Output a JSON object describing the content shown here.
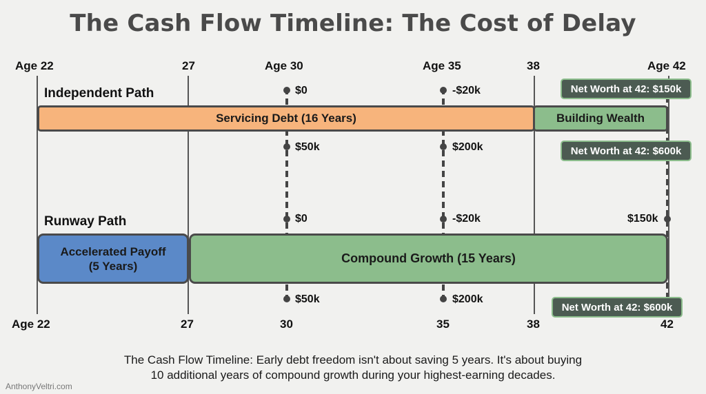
{
  "title": "The Cash Flow Timeline: The Cost of Delay",
  "top_ticks": [
    "Age 22",
    "27",
    "Age 30",
    "Age 35",
    "38",
    "Age 42"
  ],
  "bottom_ticks": [
    "Age 22",
    "27",
    "30",
    "35",
    "38",
    "42"
  ],
  "independent": {
    "label": "Independent Path",
    "debt_bar": "Servicing Debt (16 Years)",
    "wealth_bar": "Building Wealth",
    "marker30_top": "$0",
    "marker35_top": "-$20k",
    "marker30_bottom": "$50k",
    "marker35_bottom": "$200k",
    "badge_top": "Net Worth at 42: $150k",
    "badge_mid": "Net Worth at 42: $600k"
  },
  "runway": {
    "label": "Runway Path",
    "payoff_bar_line1": "Accelerated Payoff",
    "payoff_bar_line2": "(5 Years)",
    "growth_bar": "Compound Growth (15 Years)",
    "marker30_top": "$0",
    "marker35_top": "-$20k",
    "marker42_top": "$150k",
    "marker30_bottom": "$50k",
    "marker35_bottom": "$200k",
    "badge_bottom": "Net Worth at 42: $600k"
  },
  "caption_line1": "The Cash Flow Timeline: Early debt freedom isn't about saving 5 years. It's about buying",
  "caption_line2": "10 additional years of compound growth during your highest-earning decades.",
  "watermark": "AnthonyVeltri.com",
  "colors": {
    "debt": "#f7b47c",
    "wealth": "#8cbd8c",
    "payoff": "#5b89c8",
    "badge": "#4c5b52"
  }
}
